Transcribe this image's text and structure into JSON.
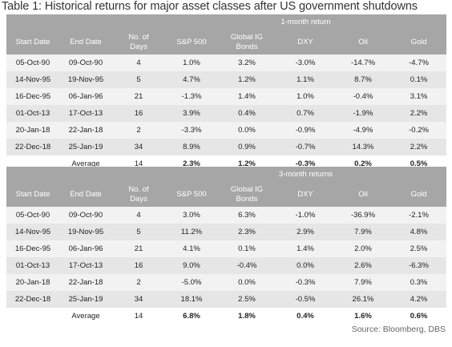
{
  "title": "Table 1: Historical returns for major asset classes after US government shutdowns",
  "columns": [
    "Start Date",
    "End Date",
    "No. of Days",
    "S&P 500",
    "Global IG Bonds",
    "DXY",
    "Oil",
    "Gold"
  ],
  "columns_split": {
    "days": [
      "No. of",
      "Days"
    ],
    "ig": [
      "Global IG",
      "Bonds"
    ]
  },
  "one_month": {
    "label": "1-month return",
    "rows": [
      [
        "05-Oct-90",
        "09-Oct-90",
        "4",
        "1.0%",
        "3.2%",
        "-3.0%",
        "-14.7%",
        "-4.7%"
      ],
      [
        "14-Nov-95",
        "19-Nov-95",
        "5",
        "4.7%",
        "1.2%",
        "1.1%",
        "8.7%",
        "0.1%"
      ],
      [
        "16-Dec-95",
        "06-Jan-96",
        "21",
        "-1.3%",
        "1.4%",
        "1.0%",
        "-0.4%",
        "3.1%"
      ],
      [
        "01-Oct-13",
        "17-Oct-13",
        "16",
        "3.9%",
        "0.4%",
        "0.7%",
        "-1.9%",
        "2.2%"
      ],
      [
        "20-Jan-18",
        "22-Jan-18",
        "2",
        "-3.3%",
        "0.0%",
        "-0.9%",
        "-4.9%",
        "-0.2%"
      ],
      [
        "22-Dec-18",
        "25-Jan-19",
        "34",
        "8.9%",
        "0.9%",
        "-0.7%",
        "14.3%",
        "2.2%"
      ]
    ],
    "average": [
      "Average",
      "14",
      "2.3%",
      "1.2%",
      "-0.3%",
      "0.2%",
      "0.5%"
    ]
  },
  "three_month": {
    "label": "3-month returns",
    "rows": [
      [
        "05-Oct-90",
        "09-Oct-90",
        "4",
        "3.0%",
        "6.3%",
        "-1.0%",
        "-36.9%",
        "-2.1%"
      ],
      [
        "14-Nov-95",
        "19-Nov-95",
        "5",
        "11.2%",
        "2.3%",
        "2.9%",
        "7.9%",
        "4.8%"
      ],
      [
        "16-Dec-95",
        "06-Jan-96",
        "21",
        "4.1%",
        "0.1%",
        "1.4%",
        "2.0%",
        "2.5%"
      ],
      [
        "01-Oct-13",
        "17-Oct-13",
        "16",
        "9.0%",
        "-0.4%",
        "0.0%",
        "2.6%",
        "-6.3%"
      ],
      [
        "20-Jan-18",
        "22-Jan-18",
        "2",
        "-5.0%",
        "0.0%",
        "-0.3%",
        "7.9%",
        "0.3%"
      ],
      [
        "22-Dec-18",
        "25-Jan-19",
        "34",
        "18.1%",
        "2.5%",
        "-0.5%",
        "26.1%",
        "4.2%"
      ]
    ],
    "average": [
      "Average",
      "14",
      "6.8%",
      "1.8%",
      "0.4%",
      "1.6%",
      "0.6%"
    ]
  },
  "source": "Source: Bloomberg, DBS",
  "colors": {
    "header_bg": "#a6a6a6",
    "row_light": "#f2f2f2",
    "row_dark": "#e6e6e6"
  }
}
